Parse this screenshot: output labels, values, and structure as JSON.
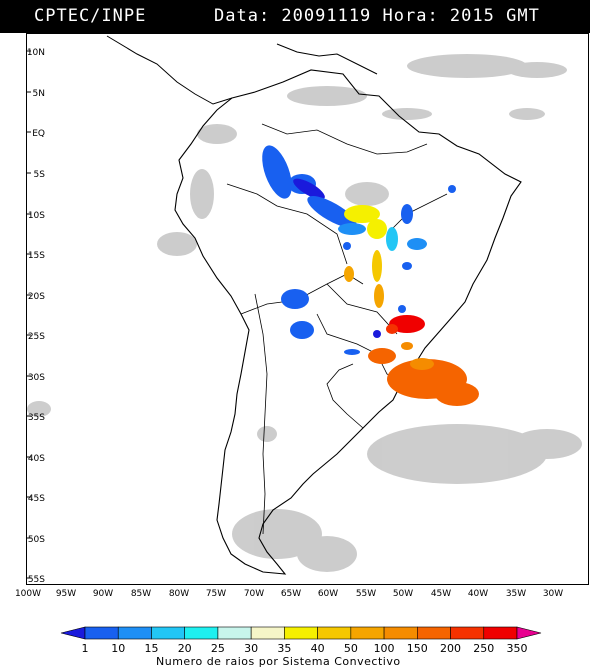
{
  "header": {
    "source": "CPTEC/INPE",
    "info": "Data: 20091119 Hora: 2015 GMT"
  },
  "map": {
    "lat_labels": [
      "10N",
      "5N",
      "EQ",
      "5S",
      "10S",
      "15S",
      "20S",
      "25S",
      "30S",
      "35S",
      "40S",
      "45S",
      "50S",
      "55S"
    ],
    "lon_labels": [
      "100W",
      "95W",
      "90W",
      "85W",
      "80W",
      "75W",
      "70W",
      "65W",
      "60W",
      "55W",
      "50W",
      "45W",
      "40W",
      "35W",
      "30W"
    ],
    "cloud_color": "#bdbdbd"
  },
  "legend": {
    "ticks": [
      "1",
      "10",
      "15",
      "20",
      "25",
      "30",
      "35",
      "40",
      "50",
      "100",
      "150",
      "200",
      "250",
      "350"
    ],
    "colors": [
      "#1a1adc",
      "#1860f0",
      "#1e8ff5",
      "#22c6f5",
      "#1ef0f0",
      "#c8f5ec",
      "#f5f5c8",
      "#f5f000",
      "#f5c800",
      "#f5a500",
      "#f58c00",
      "#f56400",
      "#f53200",
      "#f00000",
      "#e80090"
    ],
    "caption": "Numero de raios por Sistema Convectivo"
  }
}
